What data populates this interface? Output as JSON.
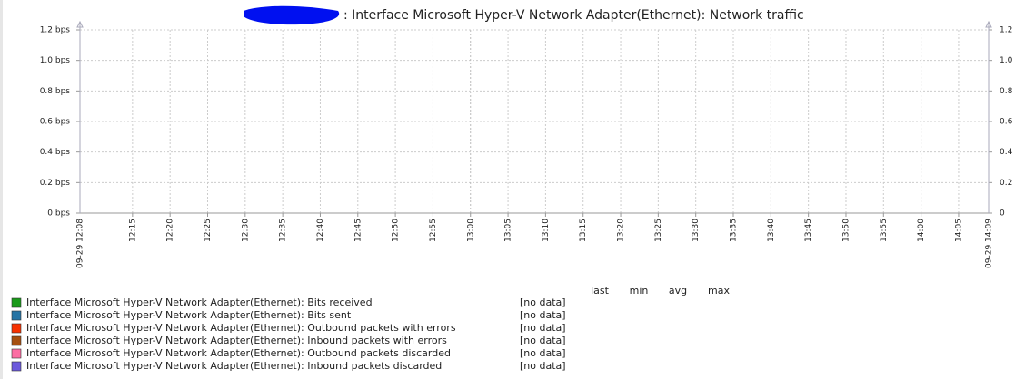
{
  "chart_data": {
    "type": "line",
    "title": ": Interface Microsoft Hyper-V Network Adapter(Ethernet): Network traffic",
    "xlim": [
      "09-29 12:08",
      "09-29 14:09"
    ],
    "xticks": [
      "12:15",
      "12:20",
      "12:25",
      "12:30",
      "12:35",
      "12:40",
      "12:45",
      "12:50",
      "12:55",
      "13:00",
      "13:05",
      "13:10",
      "13:15",
      "13:20",
      "13:25",
      "13:30",
      "13:35",
      "13:40",
      "13:45",
      "13:50",
      "13:55",
      "14:00",
      "14:05"
    ],
    "ylim": [
      0,
      1.2
    ],
    "yticks": [
      {
        "value": 0,
        "label": "0 bps"
      },
      {
        "value": 0.2,
        "label": "0.2 bps"
      },
      {
        "value": 0.4,
        "label": "0.4 bps"
      },
      {
        "value": 0.6,
        "label": "0.6 bps"
      },
      {
        "value": 0.8,
        "label": "0.8 bps"
      },
      {
        "value": 1,
        "label": "1.0 bps"
      },
      {
        "value": 1.2,
        "label": "1.2 bps"
      }
    ],
    "y2lim": [
      0,
      1.2
    ],
    "y2ticks": [
      0,
      0.2,
      0.4,
      0.6,
      0.8,
      {
        "value": 1,
        "label": "1.0"
      },
      1.2
    ],
    "grid": true,
    "legend_columns": [
      "last",
      "min",
      "avg",
      "max"
    ],
    "series": [
      {
        "name": "Interface Microsoft Hyper-V Network Adapter(Ethernet): Bits received",
        "color": "#1a9a1a",
        "status": "[no data]"
      },
      {
        "name": "Interface Microsoft Hyper-V Network Adapter(Ethernet): Bits sent",
        "color": "#2774a4",
        "status": "[no data]"
      },
      {
        "name": "Interface Microsoft Hyper-V Network Adapter(Ethernet): Outbound packets with errors",
        "color": "#f63100",
        "status": "[no data]"
      },
      {
        "name": "Interface Microsoft Hyper-V Network Adapter(Ethernet): Inbound packets with errors",
        "color": "#a54f10",
        "status": "[no data]"
      },
      {
        "name": "Interface Microsoft Hyper-V Network Adapter(Ethernet): Outbound packets discarded",
        "color": "#fc6ea3",
        "status": "[no data]"
      },
      {
        "name": "Interface Microsoft Hyper-V Network Adapter(Ethernet): Inbound packets discarded",
        "color": "#6c59dc",
        "status": "[no data]"
      }
    ]
  }
}
